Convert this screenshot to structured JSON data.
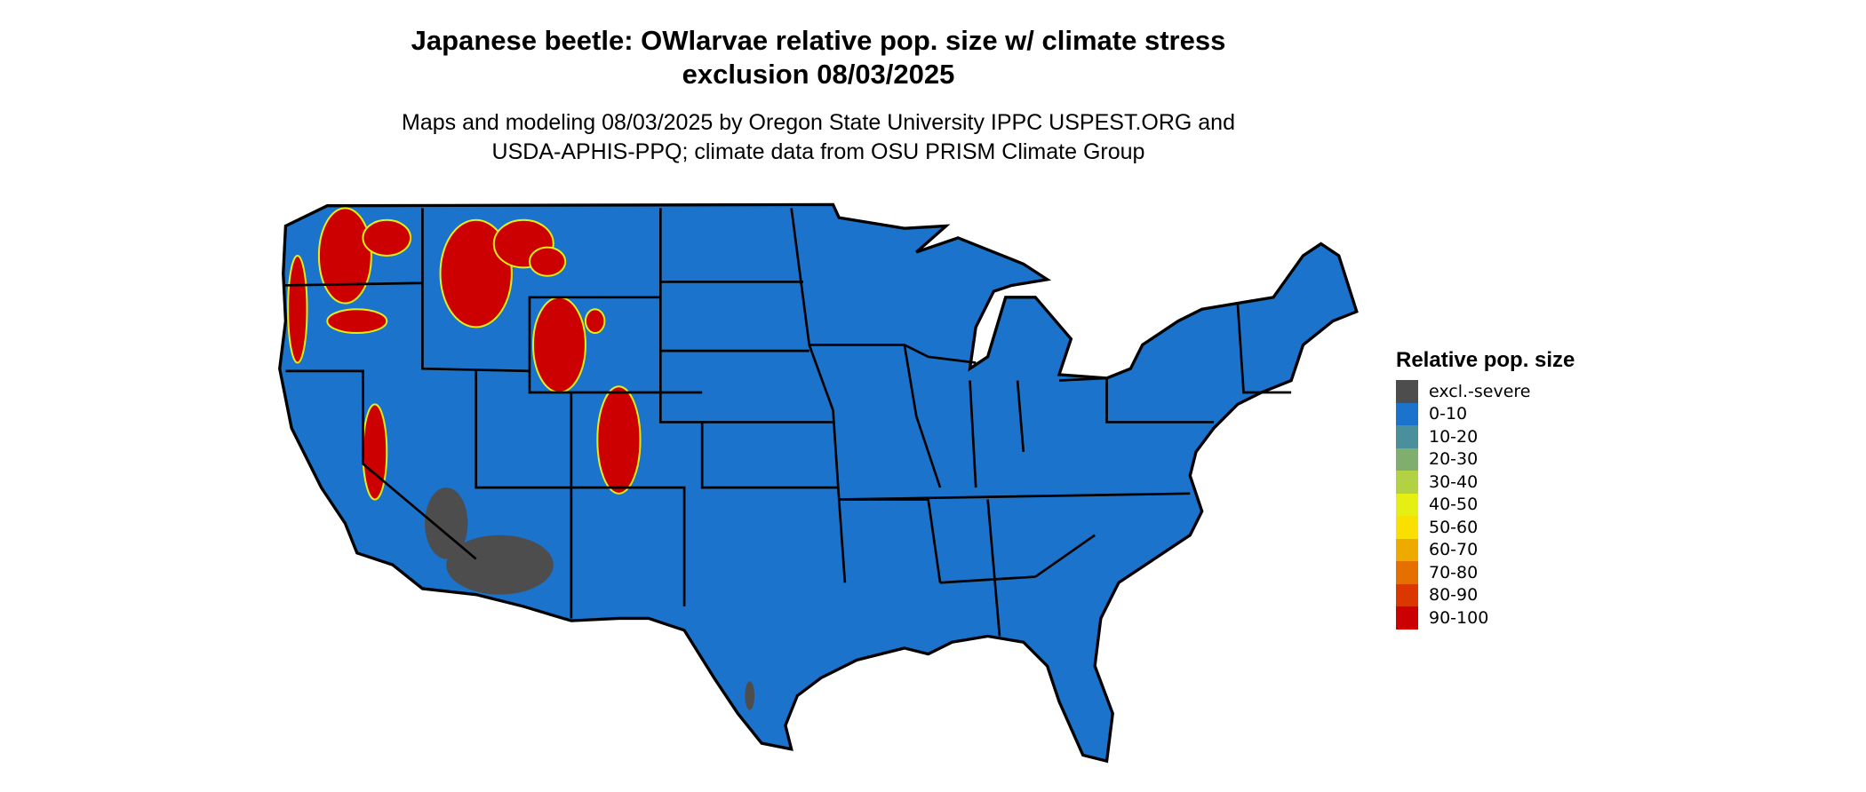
{
  "title": {
    "line1": "Japanese beetle: OWlarvae relative pop. size w/ climate stress",
    "line2": "exclusion 08/03/2025"
  },
  "subtitle": {
    "line1": "Maps and modeling 08/03/2025 by Oregon State University IPPC USPEST.ORG and",
    "line2": "USDA-APHIS-PPQ; climate data from OSU PRISM Climate Group"
  },
  "legend": {
    "title": "Relative pop. size",
    "items": [
      {
        "label": "excl.-severe",
        "color": "#4d4d4d"
      },
      {
        "label": "0-10",
        "color": "#1b73cc"
      },
      {
        "label": "10-20",
        "color": "#4a909c"
      },
      {
        "label": "20-30",
        "color": "#7fae6f"
      },
      {
        "label": "30-40",
        "color": "#b2d244"
      },
      {
        "label": "40-50",
        "color": "#e5ef12"
      },
      {
        "label": "50-60",
        "color": "#f9e000"
      },
      {
        "label": "60-70",
        "color": "#efaa00"
      },
      {
        "label": "70-80",
        "color": "#e57000"
      },
      {
        "label": "80-90",
        "color": "#db3800"
      },
      {
        "label": "90-100",
        "color": "#cc0000"
      }
    ]
  }
}
